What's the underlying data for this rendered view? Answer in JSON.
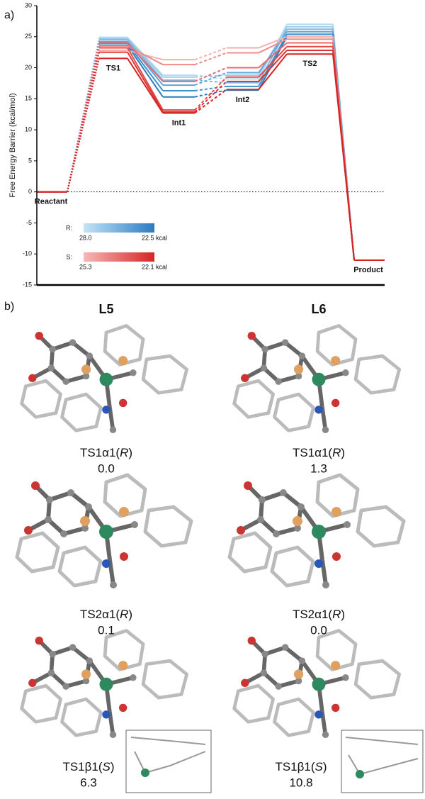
{
  "chart_data": {
    "type": "line",
    "panel_label": "a)",
    "ylabel": "Free Energy Barrier (kcal/mol)",
    "categories": [
      "Reactant",
      "TS1",
      "Int1",
      "Int2",
      "TS2",
      "Product"
    ],
    "ylim": [
      -15,
      30
    ],
    "yticks": [
      -15,
      -10,
      -5,
      0,
      5,
      10,
      15,
      20,
      25,
      30
    ],
    "reference_line": 0,
    "series": [
      {
        "color": "#b7dcf2",
        "values": [
          0,
          24.9,
          18.8,
          18.2,
          27.0,
          -11
        ]
      },
      {
        "color": "#9ccbeb",
        "values": [
          0,
          24.7,
          18.5,
          18.8,
          26.6,
          -11
        ]
      },
      {
        "color": "#7db9e2",
        "values": [
          0,
          24.5,
          18.0,
          17.6,
          26.2,
          -11
        ]
      },
      {
        "color": "#5fa6d8",
        "values": [
          0,
          24.2,
          17.2,
          19.2,
          25.8,
          -11
        ]
      },
      {
        "color": "#3f91cc",
        "values": [
          0,
          23.9,
          16.3,
          17.0,
          25.4,
          -11
        ]
      },
      {
        "color": "#2b7bbf",
        "values": [
          0,
          23.6,
          15.3,
          16.4,
          25.0,
          -11
        ]
      },
      {
        "color": "#f4b0b0",
        "values": [
          0,
          22.8,
          21.3,
          23.2,
          25.0,
          -11
        ]
      },
      {
        "color": "#ee8c8c",
        "values": [
          0,
          23.5,
          20.5,
          22.4,
          24.6,
          -11
        ]
      },
      {
        "color": "#e86a6a",
        "values": [
          0,
          24.0,
          17.8,
          20.0,
          24.0,
          -11
        ]
      },
      {
        "color": "#e24a4a",
        "values": [
          0,
          23.2,
          13.2,
          18.5,
          23.4,
          -11
        ]
      },
      {
        "color": "#dd3333",
        "values": [
          0,
          22.5,
          12.9,
          17.8,
          22.8,
          -11
        ]
      },
      {
        "color": "#d62424",
        "values": [
          0,
          21.5,
          12.7,
          16.5,
          22.2,
          -11
        ]
      }
    ],
    "colorbars": [
      {
        "label": "R:",
        "colors": [
          "#c6e4f6",
          "#2b7bbf"
        ],
        "ends": [
          "28.0",
          "22.5 kcal"
        ]
      },
      {
        "label": "S:",
        "colors": [
          "#f6b8b8",
          "#d62424"
        ],
        "ends": [
          "25.3",
          "22.1 kcal"
        ]
      }
    ]
  },
  "structures": {
    "panel_label": "b)",
    "columns": [
      {
        "ligand": "L5",
        "items": [
          {
            "name": [
              "TS1α1(",
              "R",
              ")"
            ],
            "energy": "0.0"
          },
          {
            "name": [
              "TS2α1(",
              "R",
              ")"
            ],
            "energy": "0.1"
          },
          {
            "name": [
              "TS1β1(",
              "S",
              ")"
            ],
            "energy": "6.3"
          }
        ]
      },
      {
        "ligand": "L6",
        "items": [
          {
            "name": [
              "TS1α1(",
              "R",
              ")"
            ],
            "energy": "1.3"
          },
          {
            "name": [
              "TS2α1(",
              "R",
              ")"
            ],
            "energy": "0.0"
          },
          {
            "name": [
              "TS1β1(",
              "S",
              ")"
            ],
            "energy": "10.8"
          }
        ]
      }
    ]
  }
}
